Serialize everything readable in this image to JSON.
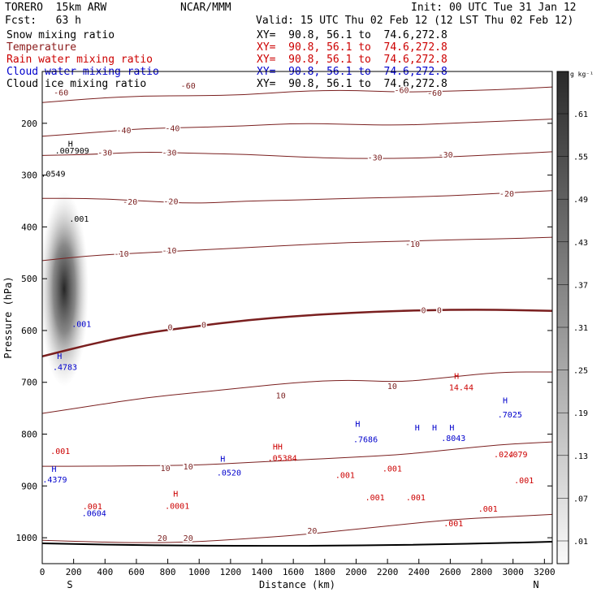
{
  "header": {
    "model": "TORERO  15km ARW",
    "org": "NCAR/MMM",
    "init": "Init: 00 UTC Tue 31 Jan 12",
    "fcst": "Fcst:   63 h",
    "valid": "Valid: 15 UTC Thu 02 Feb 12 (12 LST Thu 02 Feb 12)"
  },
  "fields": [
    {
      "name": "Snow mixing ratio",
      "color": "#000000",
      "xy": "XY=  90.8, 56.1 to  74.6,272.8",
      "xy_color": "#000000"
    },
    {
      "name": "Temperature",
      "color": "#8b1a1a",
      "xy": "XY=  90.8, 56.1 to  74.6,272.8",
      "xy_color": "#cc0000"
    },
    {
      "name": "Rain water mixing ratio",
      "color": "#cc0000",
      "xy": "XY=  90.8, 56.1 to  74.6,272.8",
      "xy_color": "#cc0000"
    },
    {
      "name": "Cloud water mixing ratio",
      "color": "#0000cc",
      "xy": "XY=  90.8, 56.1 to  74.6,272.8",
      "xy_color": "#0000cc"
    },
    {
      "name": "Cloud ice mixing ratio",
      "color": "#000000",
      "xy": "XY=  90.8, 56.1 to  74.6,272.8",
      "xy_color": "#000000"
    }
  ],
  "chart_data": {
    "type": "cross-section contour",
    "xlabel": "Distance (km)",
    "ylabel": "Pressure (hPa)",
    "x_endpoints": [
      "S",
      "N"
    ],
    "xlim": [
      0,
      3250
    ],
    "ylim": [
      1050,
      100
    ],
    "x_ticks": [
      0,
      200,
      400,
      600,
      800,
      1000,
      1200,
      1400,
      1600,
      1800,
      2000,
      2200,
      2400,
      2600,
      2800,
      3000,
      3200
    ],
    "y_ticks": [
      200,
      300,
      400,
      500,
      600,
      700,
      800,
      900,
      1000
    ],
    "colorbar": {
      "unit": "g kg⁻¹",
      "ticks": [
        ".61",
        ".55",
        ".49",
        ".43",
        ".37",
        ".31",
        ".25",
        ".19",
        ".13",
        ".07",
        ".01"
      ]
    },
    "temperature_contours": [
      {
        "label": "-60",
        "pressure": [
          160,
          152,
          147,
          147,
          145,
          138,
          136,
          140,
          138,
          135,
          130
        ],
        "label_pos": [
          [
            120,
            140
          ],
          [
            930,
            127
          ],
          [
            2290,
            135
          ],
          [
            2500,
            141
          ]
        ]
      },
      {
        "label": "-40",
        "pressure": [
          225,
          218,
          210,
          208,
          205,
          200,
          202,
          204,
          200,
          196,
          192
        ],
        "label_pos": [
          [
            520,
            213
          ],
          [
            830,
            209
          ]
        ]
      },
      {
        "label": "-30",
        "pressure": [
          262,
          260,
          255,
          258,
          260,
          265,
          268,
          268,
          265,
          260,
          255
        ],
        "label_pos": [
          [
            400,
            256
          ],
          [
            810,
            256
          ],
          [
            2120,
            265
          ],
          [
            2570,
            260
          ]
        ]
      },
      {
        "label": "-20",
        "pressure": [
          345,
          345,
          350,
          355,
          350,
          348,
          345,
          343,
          340,
          335,
          330
        ],
        "label_pos": [
          [
            560,
            351
          ],
          [
            820,
            350
          ],
          [
            2960,
            335
          ]
        ]
      },
      {
        "label": "-10",
        "pressure": [
          465,
          455,
          450,
          445,
          440,
          435,
          430,
          428,
          425,
          423,
          420
        ],
        "label_pos": [
          [
            505,
            451
          ],
          [
            810,
            445
          ],
          [
            2360,
            432
          ]
        ]
      },
      {
        "label": "0",
        "pressure": [
          650,
          625,
          605,
          592,
          580,
          572,
          566,
          562,
          560,
          560,
          562
        ],
        "label_pos": [
          [
            815,
            593
          ],
          [
            1030,
            588
          ],
          [
            2430,
            560
          ],
          [
            2530,
            560
          ]
        ]
      },
      {
        "label": "10",
        "pressure": [
          760,
          745,
          730,
          720,
          710,
          700,
          695,
          700,
          690,
          680,
          680
        ],
        "label_pos": [
          [
            1520,
            725
          ],
          [
            2230,
            707
          ]
        ]
      },
      {
        "label": "10",
        "pressure": [
          862,
          862,
          861,
          860,
          855,
          850,
          845,
          840,
          830,
          820,
          815
        ],
        "label_pos": [
          [
            785,
            865
          ],
          [
            930,
            862
          ]
        ]
      },
      {
        "label": "20",
        "pressure": [
          1005,
          1008,
          1010,
          1008,
          1002,
          995,
          985,
          975,
          965,
          960,
          955
        ],
        "label_pos": [
          [
            765,
            1000
          ],
          [
            930,
            1000
          ],
          [
            1720,
            986
          ]
        ]
      }
    ],
    "snow_peak": {
      "distance_km": 140,
      "pressure_hPa": 520
    },
    "annotations": [
      {
        "text": "H",
        "x": 180,
        "y": 245,
        "color": "#000000"
      },
      {
        "text": ".007909",
        "x": 190,
        "y": 258,
        "color": "#000000"
      },
      {
        "text": ".0549",
        "x": 70,
        "y": 303,
        "color": "#000000"
      },
      {
        "text": ".001",
        "x": 235,
        "y": 390,
        "color": "#000000"
      },
      {
        "text": ".001",
        "x": 250,
        "y": 593,
        "color": "#0000cc"
      },
      {
        "text": "H",
        "x": 110,
        "y": 655,
        "color": "#0000cc"
      },
      {
        "text": ".4783",
        "x": 145,
        "y": 676,
        "color": "#0000cc"
      },
      {
        "text": "H",
        "x": 75,
        "y": 873,
        "color": "#0000cc"
      },
      {
        "text": ".4379",
        "x": 80,
        "y": 893,
        "color": "#0000cc"
      },
      {
        "text": ".001",
        "x": 115,
        "y": 838,
        "color": "#cc0000"
      },
      {
        "text": ".001",
        "x": 320,
        "y": 945,
        "color": "#cc0000"
      },
      {
        "text": ".0604",
        "x": 330,
        "y": 958,
        "color": "#0000cc"
      },
      {
        "text": "H",
        "x": 1150,
        "y": 853,
        "color": "#0000cc"
      },
      {
        "text": ".0520",
        "x": 1190,
        "y": 880,
        "color": "#0000cc"
      },
      {
        "text": "H",
        "x": 850,
        "y": 921,
        "color": "#cc0000"
      },
      {
        "text": ".0001",
        "x": 860,
        "y": 944,
        "color": "#cc0000"
      },
      {
        "text": "HH",
        "x": 1500,
        "y": 830,
        "color": "#cc0000"
      },
      {
        "text": ".05384",
        "x": 1530,
        "y": 852,
        "color": "#cc0000"
      },
      {
        "text": "H",
        "x": 2010,
        "y": 786,
        "color": "#0000cc"
      },
      {
        "text": ".7686",
        "x": 2060,
        "y": 816,
        "color": "#0000cc"
      },
      {
        "text": "H",
        "x": 2640,
        "y": 693,
        "color": "#cc0000"
      },
      {
        "text": "14.44",
        "x": 2670,
        "y": 715,
        "color": "#cc0000"
      },
      {
        "text": "H",
        "x": 2390,
        "y": 793,
        "color": "#0000cc"
      },
      {
        "text": "H",
        "x": 2500,
        "y": 793,
        "color": "#0000cc"
      },
      {
        "text": "H",
        "x": 2610,
        "y": 793,
        "color": "#0000cc"
      },
      {
        "text": ".8043",
        "x": 2620,
        "y": 813,
        "color": "#0000cc"
      },
      {
        "text": "H",
        "x": 2950,
        "y": 740,
        "color": "#0000cc"
      },
      {
        "text": ".7025",
        "x": 2980,
        "y": 768,
        "color": "#0000cc"
      },
      {
        "text": ".024",
        "x": 2940,
        "y": 845,
        "color": "#cc0000"
      },
      {
        "text": ".079",
        "x": 3030,
        "y": 845,
        "color": "#cc0000"
      },
      {
        "text": ".001",
        "x": 1930,
        "y": 885,
        "color": "#cc0000"
      },
      {
        "text": ".001",
        "x": 2230,
        "y": 872,
        "color": "#cc0000"
      },
      {
        "text": ".001",
        "x": 2120,
        "y": 928,
        "color": "#cc0000"
      },
      {
        "text": ".001",
        "x": 2380,
        "y": 928,
        "color": "#cc0000"
      },
      {
        "text": ".001",
        "x": 2620,
        "y": 978,
        "color": "#cc0000"
      },
      {
        "text": ".001",
        "x": 2840,
        "y": 950,
        "color": "#cc0000"
      },
      {
        "text": ".001",
        "x": 3070,
        "y": 895,
        "color": "#cc0000"
      }
    ]
  }
}
